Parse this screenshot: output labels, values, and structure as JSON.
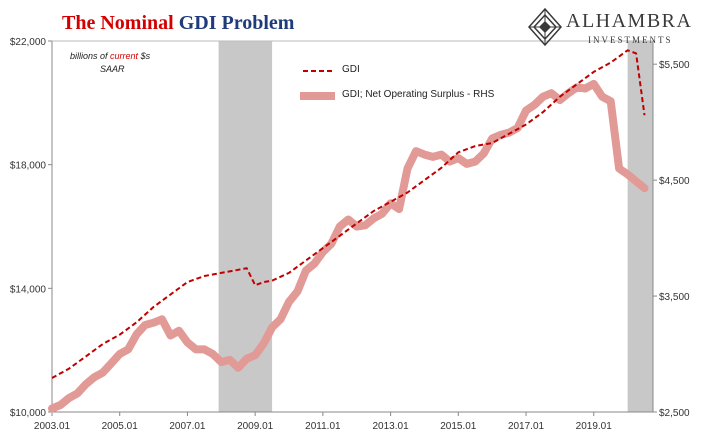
{
  "title": {
    "part1": "The Nominal",
    "part2": "GDI Problem"
  },
  "logo": {
    "name": "ALHAMBRA",
    "sub": "INVESTMENTS"
  },
  "note": {
    "pre": "billions of",
    "highlight": "current",
    "post": "$s",
    "unit": "SAAR"
  },
  "colors": {
    "gdi": "#c00000",
    "surplus": "#e29a97",
    "recession": "#c8c8c8",
    "title_red": "#d40000",
    "title_blue": "#1f3b7a"
  },
  "chart_data": {
    "type": "line",
    "x_range": [
      2003.0,
      2020.75
    ],
    "x_ticks": [
      "2003.01",
      "2005.01",
      "2007.01",
      "2009.01",
      "2011.01",
      "2013.01",
      "2015.01",
      "2017.01",
      "2019.01"
    ],
    "left_axis": {
      "range": [
        10000,
        22000
      ],
      "ticks": [
        "$10,000",
        "$14,000",
        "$18,000",
        "$22,000"
      ]
    },
    "right_axis": {
      "range": [
        2500,
        5700
      ],
      "ticks": [
        "$2,500",
        "$3,500",
        "$4,500",
        "$5,500"
      ]
    },
    "recessions": [
      [
        2007.92,
        2009.5
      ],
      [
        2020.0,
        2020.75
      ]
    ],
    "series": [
      {
        "name": "GDI",
        "axis": "left",
        "style": "dashed",
        "x": [
          2003.0,
          2003.5,
          2004.0,
          2004.5,
          2005.0,
          2005.5,
          2006.0,
          2006.5,
          2007.0,
          2007.5,
          2008.0,
          2008.5,
          2008.75,
          2009.0,
          2009.25,
          2009.5,
          2010.0,
          2010.5,
          2011.0,
          2011.5,
          2012.0,
          2012.5,
          2013.0,
          2013.5,
          2014.0,
          2014.5,
          2015.0,
          2015.5,
          2016.0,
          2016.5,
          2017.0,
          2017.5,
          2018.0,
          2018.5,
          2019.0,
          2019.5,
          2020.0,
          2020.25,
          2020.5
        ],
        "values": [
          11100,
          11400,
          11800,
          12200,
          12500,
          12900,
          13400,
          13800,
          14200,
          14400,
          14500,
          14600,
          14650,
          14100,
          14200,
          14250,
          14500,
          14900,
          15300,
          15700,
          16100,
          16500,
          16800,
          17100,
          17500,
          17900,
          18400,
          18600,
          18700,
          19000,
          19300,
          19700,
          20200,
          20600,
          21000,
          21300,
          21700,
          21600,
          19600
        ]
      },
      {
        "name": "GDI; Net Operating Surplus - RHS",
        "axis": "right",
        "style": "thick",
        "x": [
          2003.0,
          2003.25,
          2003.5,
          2003.75,
          2004.0,
          2004.25,
          2004.5,
          2004.75,
          2005.0,
          2005.25,
          2005.5,
          2005.75,
          2006.0,
          2006.25,
          2006.5,
          2006.75,
          2007.0,
          2007.25,
          2007.5,
          2007.75,
          2008.0,
          2008.25,
          2008.5,
          2008.75,
          2009.0,
          2009.25,
          2009.5,
          2009.75,
          2010.0,
          2010.25,
          2010.5,
          2010.75,
          2011.0,
          2011.25,
          2011.5,
          2011.75,
          2012.0,
          2012.25,
          2012.5,
          2012.75,
          2013.0,
          2013.25,
          2013.5,
          2013.75,
          2014.0,
          2014.25,
          2014.5,
          2014.75,
          2015.0,
          2015.25,
          2015.5,
          2015.75,
          2016.0,
          2016.25,
          2016.5,
          2016.75,
          2017.0,
          2017.25,
          2017.5,
          2017.75,
          2018.0,
          2018.25,
          2018.5,
          2018.75,
          2019.0,
          2019.25,
          2019.5,
          2019.75,
          2020.0,
          2020.25,
          2020.5
        ],
        "values": [
          2530,
          2560,
          2620,
          2660,
          2740,
          2800,
          2840,
          2920,
          3000,
          3040,
          3170,
          3250,
          3270,
          3300,
          3160,
          3200,
          3100,
          3040,
          3040,
          3000,
          2930,
          2950,
          2880,
          2960,
          2990,
          3090,
          3230,
          3300,
          3450,
          3540,
          3720,
          3780,
          3880,
          3950,
          4100,
          4160,
          4100,
          4110,
          4170,
          4210,
          4300,
          4250,
          4600,
          4750,
          4720,
          4700,
          4720,
          4660,
          4690,
          4640,
          4660,
          4730,
          4860,
          4890,
          4910,
          4950,
          5100,
          5150,
          5220,
          5250,
          5190,
          5250,
          5300,
          5290,
          5330,
          5220,
          5180,
          4600,
          4550,
          4490,
          4430
        ]
      }
    ]
  }
}
